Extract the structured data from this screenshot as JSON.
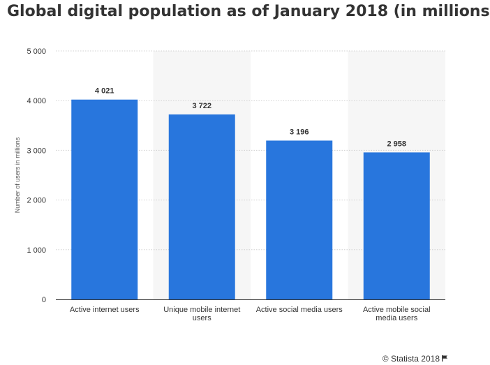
{
  "title": "Global digital population as of January 2018 (in millions)",
  "credit": "© Statista 2018",
  "credit_icon": "flag-icon",
  "colors": {
    "bar": "#2876dd",
    "band": "#f6f6f6",
    "grid": "#d0d0d0",
    "axis": "#333333",
    "text": "#333333"
  },
  "chart_data": {
    "type": "bar",
    "title": "Global digital population as of January 2018 (in millions)",
    "categories": [
      [
        "Active internet users"
      ],
      [
        "Unique mobile internet",
        "users"
      ],
      [
        "Active social media users"
      ],
      [
        "Active mobile social",
        "media users"
      ]
    ],
    "values": [
      4021,
      3722,
      3196,
      2958
    ],
    "value_labels": [
      "4 021",
      "3 722",
      "3 196",
      "2 958"
    ],
    "ylabel": "Number of users in millions",
    "xlabel": "",
    "ylim": [
      0,
      5000
    ],
    "yticks": [
      0,
      1000,
      2000,
      3000,
      4000,
      5000
    ],
    "ytick_labels": [
      "0",
      "1 000",
      "2 000",
      "3 000",
      "4 000",
      "5 000"
    ],
    "grid": true,
    "legend": "none"
  }
}
